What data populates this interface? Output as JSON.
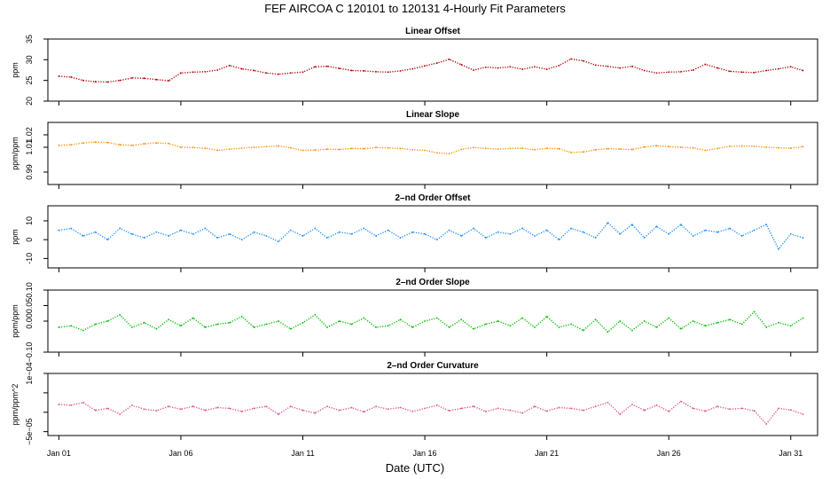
{
  "figure": {
    "title": "FEF   AIRCOA C   120101 to 120131   4-Hourly Fit Parameters",
    "xlabel": "Date (UTC)",
    "x_ticks": [
      "Jan 01",
      "Jan 06",
      "Jan 11",
      "Jan 16",
      "Jan 21",
      "Jan 26",
      "Jan 31"
    ]
  },
  "chart_data": [
    {
      "type": "line",
      "title": "Linear Offset",
      "ylabel": "ppm",
      "ylim": [
        20,
        35
      ],
      "yticks": [
        20,
        25,
        30,
        35
      ],
      "color": "#b00000",
      "x_unit": "day of January 2012",
      "series": [
        {
          "x": [
            1,
            1.5,
            2,
            2.5,
            3,
            3.5,
            4,
            4.5,
            5,
            5.5,
            6,
            6.5,
            7,
            7.5,
            8,
            8.5,
            9,
            9.5,
            10,
            10.5,
            11,
            11.5,
            12,
            12.5,
            13,
            13.5,
            14,
            14.5,
            15,
            15.5,
            16,
            16.5,
            17,
            17.5,
            18,
            18.5,
            19,
            19.5,
            20,
            20.5,
            21,
            21.5,
            22,
            22.5,
            23,
            23.5,
            24,
            24.5,
            25,
            25.5,
            26,
            26.5,
            27,
            27.5,
            28,
            28.5,
            29,
            29.5,
            30,
            30.5,
            31,
            31.5
          ],
          "values": [
            26,
            25.8,
            25,
            24.7,
            24.6,
            25,
            25.6,
            25.5,
            25.2,
            24.9,
            26.8,
            27,
            27.1,
            27.5,
            28.6,
            27.8,
            27.4,
            26.8,
            26.5,
            26.8,
            27,
            28.3,
            28.4,
            27.9,
            27.4,
            27.3,
            27.1,
            27,
            27.3,
            27.8,
            28.5,
            29.2,
            30.1,
            28.8,
            27.5,
            28.2,
            28,
            28.3,
            27.7,
            28.3,
            27.7,
            28.6,
            30.2,
            29.7,
            28.7,
            28.4,
            28,
            28.4,
            27.4,
            26.8,
            27,
            27.1,
            27.5,
            28.9,
            28,
            27.2,
            27,
            26.9,
            27.4,
            27.8,
            28.3,
            27.4
          ]
        }
      ]
    },
    {
      "type": "line",
      "title": "Linear Slope",
      "ylabel": "ppm/ppm",
      "ylim": [
        0.98,
        1.03
      ],
      "yticks": [
        0.99,
        1.01
      ],
      "yticks_extra": [
        1.02
      ],
      "color": "#ff8c00",
      "x_unit": "day of January 2012",
      "series": [
        {
          "x": [
            1,
            1.5,
            2,
            2.5,
            3,
            3.5,
            4,
            4.5,
            5,
            5.5,
            6,
            6.5,
            7,
            7.5,
            8,
            8.5,
            9,
            9.5,
            10,
            10.5,
            11,
            11.5,
            12,
            12.5,
            13,
            13.5,
            14,
            14.5,
            15,
            15.5,
            16,
            16.5,
            17,
            17.5,
            18,
            18.5,
            19,
            19.5,
            20,
            20.5,
            21,
            21.5,
            22,
            22.5,
            23,
            23.5,
            24,
            24.5,
            25,
            25.5,
            26,
            26.5,
            27,
            27.5,
            28,
            28.5,
            29,
            29.5,
            30,
            30.5,
            31,
            31.5
          ],
          "values": [
            1.0115,
            1.012,
            1.0135,
            1.0142,
            1.0138,
            1.012,
            1.0115,
            1.0128,
            1.0135,
            1.013,
            1.01,
            1.0098,
            1.0092,
            1.0075,
            1.0085,
            1.0092,
            1.01,
            1.0105,
            1.011,
            1.0095,
            1.0075,
            1.0078,
            1.0085,
            1.0082,
            1.009,
            1.0088,
            1.0098,
            1.0095,
            1.009,
            1.008,
            1.0075,
            1.0055,
            1.0048,
            1.0082,
            1.0098,
            1.009,
            1.0085,
            1.009,
            1.0092,
            1.008,
            1.0092,
            1.0088,
            1.0058,
            1.0062,
            1.008,
            1.0088,
            1.0085,
            1.0082,
            1.0102,
            1.0112,
            1.0105,
            1.01,
            1.0095,
            1.0075,
            1.009,
            1.0108,
            1.011,
            1.0108,
            1.01,
            1.0095,
            1.0092,
            1.0105
          ]
        }
      ]
    },
    {
      "type": "line",
      "title": "2–nd Order Offset",
      "ylabel": "ppm",
      "ylim": [
        -15,
        18
      ],
      "yticks": [
        -10,
        0,
        10
      ],
      "color": "#1e90ff",
      "x_unit": "day of January 2012",
      "series": [
        {
          "x": [
            1,
            1.5,
            2,
            2.5,
            3,
            3.5,
            4,
            4.5,
            5,
            5.5,
            6,
            6.5,
            7,
            7.5,
            8,
            8.5,
            9,
            9.5,
            10,
            10.5,
            11,
            11.5,
            12,
            12.5,
            13,
            13.5,
            14,
            14.5,
            15,
            15.5,
            16,
            16.5,
            17,
            17.5,
            18,
            18.5,
            19,
            19.5,
            20,
            20.5,
            21,
            21.5,
            22,
            22.5,
            23,
            23.5,
            24,
            24.5,
            25,
            25.5,
            26,
            26.5,
            27,
            27.5,
            28,
            28.5,
            29,
            29.5,
            30,
            30.5,
            31,
            31.5
          ],
          "values": [
            5,
            6,
            2,
            4,
            0,
            6,
            3,
            1,
            4,
            2,
            5,
            3,
            6,
            1,
            3,
            0,
            4,
            2,
            -1,
            5,
            2,
            6,
            1,
            4,
            3,
            6,
            2,
            5,
            1,
            4,
            3,
            0,
            5,
            2,
            6,
            1,
            4,
            3,
            6,
            2,
            5,
            0,
            6,
            4,
            1,
            9,
            3,
            8,
            1,
            7,
            3,
            8,
            2,
            5,
            4,
            6,
            2,
            5,
            8,
            -5,
            3,
            1
          ]
        }
      ]
    },
    {
      "type": "line",
      "title": "2–nd Order Slope",
      "ylabel": "ppm/ppm",
      "ylim": [
        -0.1,
        0.1
      ],
      "yticks": [
        -0.1,
        0.0,
        0.05,
        0.1
      ],
      "ytick_labels": [
        "−0.10",
        "0.00",
        "0.05",
        "0.10"
      ],
      "color": "#00c000",
      "x_unit": "day of January 2012",
      "series": [
        {
          "x": [
            1,
            1.5,
            2,
            2.5,
            3,
            3.5,
            4,
            4.5,
            5,
            5.5,
            6,
            6.5,
            7,
            7.5,
            8,
            8.5,
            9,
            9.5,
            10,
            10.5,
            11,
            11.5,
            12,
            12.5,
            13,
            13.5,
            14,
            14.5,
            15,
            15.5,
            16,
            16.5,
            17,
            17.5,
            18,
            18.5,
            19,
            19.5,
            20,
            20.5,
            21,
            21.5,
            22,
            22.5,
            23,
            23.5,
            24,
            24.5,
            25,
            25.5,
            26,
            26.5,
            27,
            27.5,
            28,
            28.5,
            29,
            29.5,
            30,
            30.5,
            31,
            31.5
          ],
          "values": [
            -0.02,
            -0.015,
            -0.03,
            -0.01,
            0.0,
            0.02,
            -0.02,
            -0.005,
            -0.025,
            0.005,
            -0.015,
            0.01,
            -0.02,
            -0.01,
            -0.005,
            0.015,
            -0.02,
            -0.01,
            0.0,
            -0.025,
            -0.005,
            0.02,
            -0.02,
            0.0,
            -0.01,
            0.01,
            -0.02,
            -0.015,
            0.005,
            -0.02,
            0.0,
            0.01,
            -0.02,
            0.005,
            -0.025,
            -0.01,
            0.0,
            -0.015,
            0.01,
            -0.02,
            0.015,
            -0.02,
            -0.01,
            -0.03,
            0.005,
            -0.035,
            0.0,
            -0.03,
            0.0,
            -0.02,
            0.01,
            -0.025,
            0.0,
            -0.015,
            -0.005,
            0.005,
            -0.01,
            0.03,
            -0.02,
            -0.005,
            -0.015,
            0.01
          ]
        }
      ]
    },
    {
      "type": "line",
      "title": "2–nd Order Curvature",
      "ylabel": "ppm/ppm^2",
      "ylim": [
        -6e-05,
        0.0001
      ],
      "yticks": [
        -5e-05,
        0.0,
        5e-05,
        0.0001
      ],
      "ytick_labels": [
        "−5e−05",
        "",
        "",
        "1e−04"
      ],
      "color": "#e0508a",
      "x_unit": "day of January 2012",
      "series": [
        {
          "x": [
            1,
            1.5,
            2,
            2.5,
            3,
            3.5,
            4,
            4.5,
            5,
            5.5,
            6,
            6.5,
            7,
            7.5,
            8,
            8.5,
            9,
            9.5,
            10,
            10.5,
            11,
            11.5,
            12,
            12.5,
            13,
            13.5,
            14,
            14.5,
            15,
            15.5,
            16,
            16.5,
            17,
            17.5,
            18,
            18.5,
            19,
            19.5,
            20,
            20.5,
            21,
            21.5,
            22,
            22.5,
            23,
            23.5,
            24,
            24.5,
            25,
            25.5,
            26,
            26.5,
            27,
            27.5,
            28,
            28.5,
            29,
            29.5,
            30,
            30.5,
            31,
            31.5
          ],
          "values": [
            2e-05,
            1.8e-05,
            2.5e-05,
            5e-06,
            1e-05,
            -5e-06,
            1.8e-05,
            8e-06,
            4e-06,
            1.5e-05,
            8e-06,
            1.5e-05,
            5e-06,
            1.2e-05,
            1e-05,
            2e-06,
            1e-05,
            1.5e-05,
            -5e-06,
            1.5e-05,
            5e-06,
            -2e-06,
            1.5e-05,
            5e-06,
            1.2e-05,
            1e-06,
            1.5e-05,
            8e-06,
            1.2e-05,
            2e-06,
            1e-05,
            1.8e-05,
            4e-06,
            1e-05,
            1.5e-05,
            2e-06,
            1e-05,
            5e-06,
            -2e-06,
            1.5e-05,
            3e-06,
            1.2e-05,
            1e-05,
            5e-06,
            1.5e-05,
            2.5e-05,
            -5e-06,
            2e-05,
            5e-06,
            1.8e-05,
            2e-06,
            2.8e-05,
            1e-05,
            3e-06,
            1.5e-05,
            8e-06,
            1e-05,
            4e-06,
            -3e-05,
            1e-05,
            6e-06,
            -5e-06
          ]
        }
      ]
    }
  ]
}
